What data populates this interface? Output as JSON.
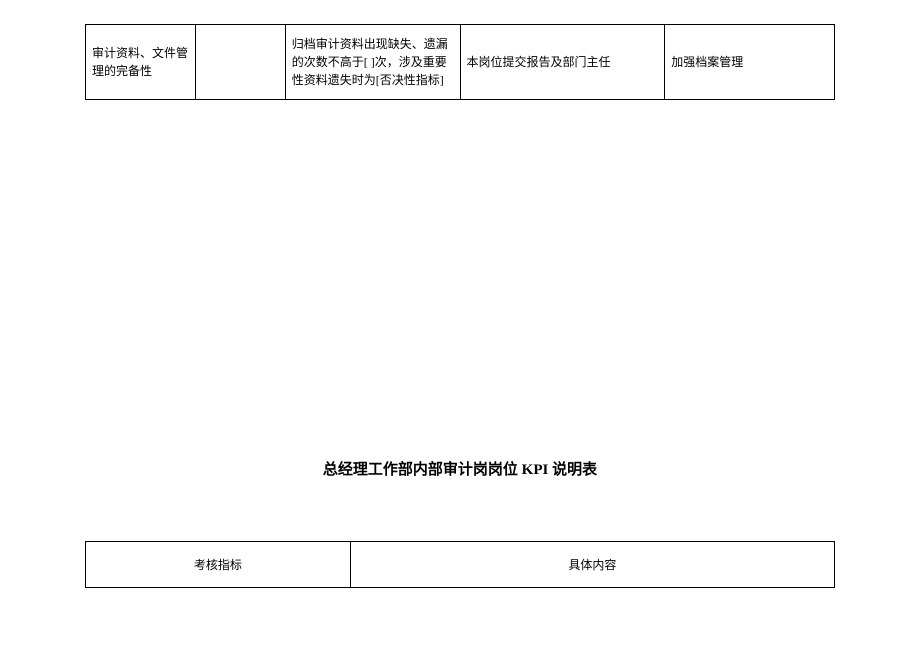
{
  "table1": {
    "rows": [
      {
        "col1": "审计资料、文件管理的完备性",
        "col2": "",
        "col3": "归档审计资料出现缺失、遗漏的次数不高于[    ]次，涉及重要性资料遗失时为[否决性指标]",
        "col4": "本岗位提交报告及部门主任",
        "col5": "加强档案管理"
      }
    ]
  },
  "title": "总经理工作部内部审计岗岗位 KPI 说明表",
  "table2": {
    "rows": [
      {
        "col1": "考核指标",
        "col2": "具体内容"
      }
    ]
  }
}
